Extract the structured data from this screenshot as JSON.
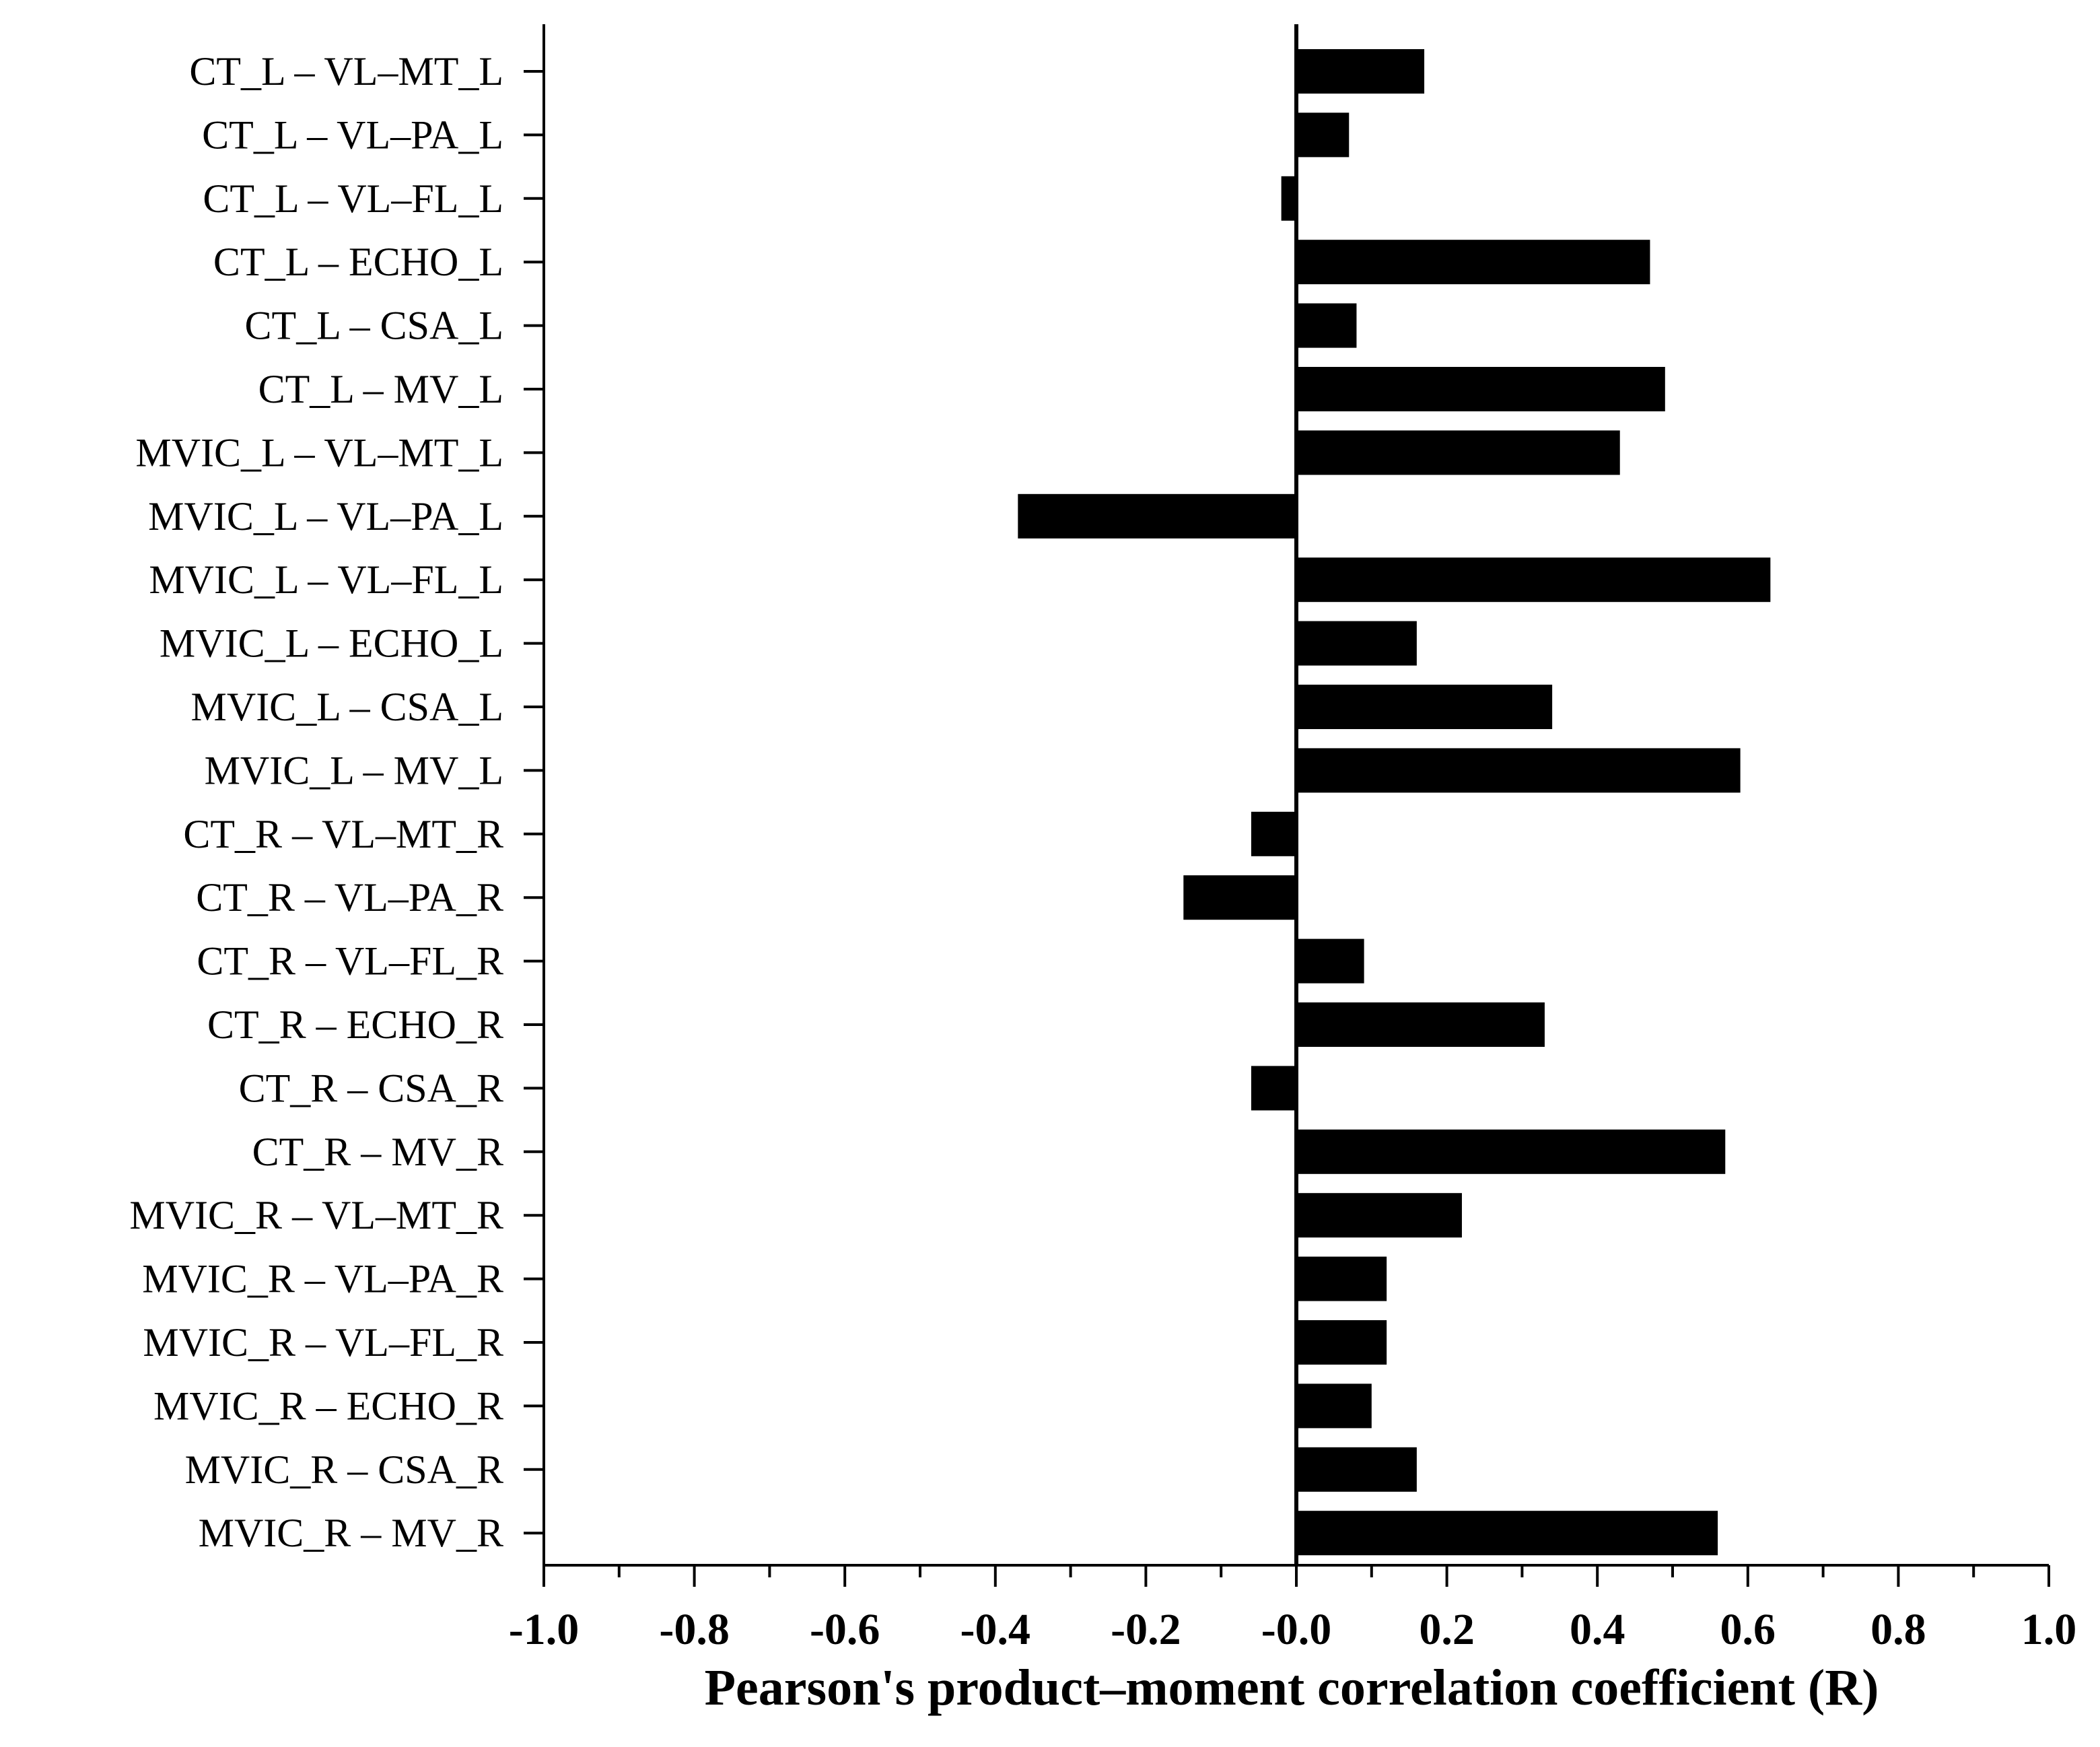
{
  "chart_data": {
    "type": "bar",
    "orientation": "horizontal",
    "xlabel": "Pearson's product–moment correlation coefficient (R)",
    "xlim": [
      -1.0,
      1.0
    ],
    "xticks": [
      -1.0,
      -0.8,
      -0.6,
      -0.4,
      -0.2,
      0.0,
      0.2,
      0.4,
      0.6,
      0.8,
      1.0
    ],
    "xtick_labels": [
      "-1.0",
      "-0.8",
      "-0.6",
      "-0.4",
      "-0.2",
      "-0.0",
      "0.2",
      "0.4",
      "0.6",
      "0.8",
      "1.0"
    ],
    "bar_color": "#000000",
    "categories": [
      "CT_L – VL–MT_L",
      "CT_L – VL–PA_L",
      "CT_L – VL–FL_L",
      "CT_L – ECHO_L",
      "CT_L – CSA_L",
      "CT_L – MV_L",
      "MVIC_L – VL–MT_L",
      "MVIC_L – VL–PA_L",
      "MVIC_L – VL–FL_L",
      "MVIC_L – ECHO_L",
      "MVIC_L – CSA_L",
      "MVIC_L – MV_L",
      "CT_R – VL–MT_R",
      "CT_R – VL–PA_R",
      "CT_R – VL–FL_R",
      "CT_R – ECHO_R",
      "CT_R – CSA_R",
      "CT_R – MV_R",
      "MVIC_R – VL–MT_R",
      "MVIC_R – VL–PA_R",
      "MVIC_R – VL–FL_R",
      "MVIC_R – ECHO_R",
      "MVIC_R – CSA_R",
      "MVIC_R – MV_R"
    ],
    "values": [
      0.17,
      0.07,
      -0.02,
      0.47,
      0.08,
      0.49,
      0.43,
      -0.37,
      0.63,
      0.16,
      0.34,
      0.59,
      -0.06,
      -0.15,
      0.09,
      0.33,
      -0.06,
      0.57,
      0.22,
      0.12,
      0.12,
      0.1,
      0.16,
      0.56
    ]
  }
}
